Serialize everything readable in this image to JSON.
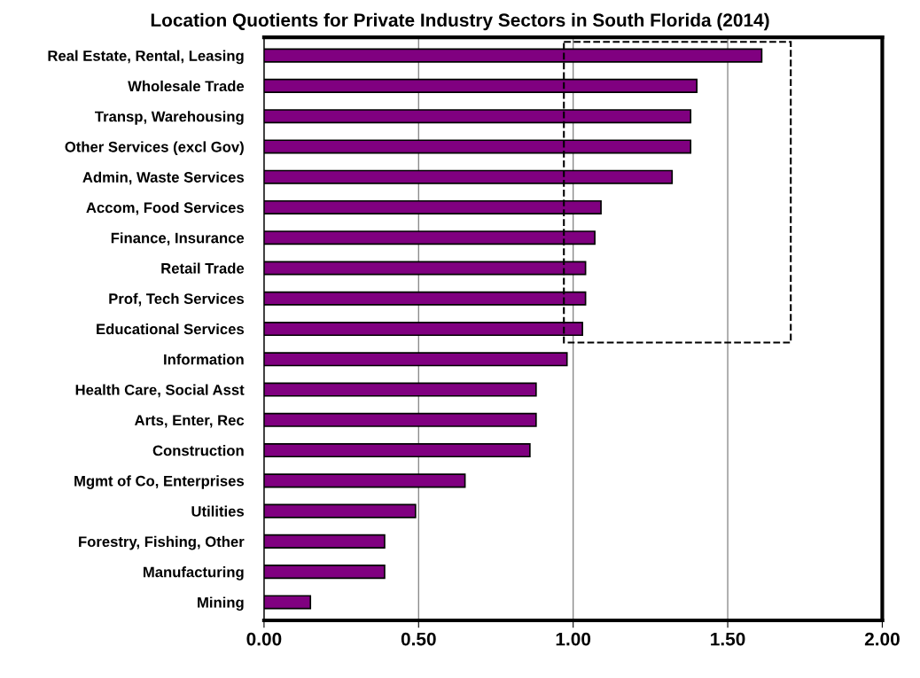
{
  "chart_data": {
    "type": "bar",
    "orientation": "horizontal",
    "title": "Location Quotients for Private Industry Sectors in South Florida (2014)",
    "categories": [
      "Real Estate, Rental, Leasing",
      "Wholesale Trade",
      "Transp, Warehousing",
      "Other Services (excl Gov)",
      "Admin, Waste Services",
      "Accom, Food Services",
      "Finance, Insurance",
      "Retail Trade",
      "Prof, Tech Services",
      "Educational Services",
      "Information",
      "Health Care, Social Asst",
      "Arts, Enter, Rec",
      "Construction",
      "Mgmt of Co, Enterprises",
      "Utilities",
      "Forestry, Fishing, Other",
      "Manufacturing",
      "Mining"
    ],
    "values": [
      1.61,
      1.4,
      1.38,
      1.38,
      1.32,
      1.09,
      1.07,
      1.04,
      1.04,
      1.03,
      0.98,
      0.88,
      0.88,
      0.86,
      0.65,
      0.49,
      0.39,
      0.39,
      0.15
    ],
    "color": "#800080",
    "xlim": [
      0,
      2
    ],
    "xticks": [
      {
        "value": 0,
        "label": "0.00"
      },
      {
        "value": 0.5,
        "label": "0.50"
      },
      {
        "value": 1,
        "label": "1.00"
      },
      {
        "value": 1.5,
        "label": "1.50"
      },
      {
        "value": 2,
        "label": "2.00"
      }
    ],
    "grid": "x"
  }
}
